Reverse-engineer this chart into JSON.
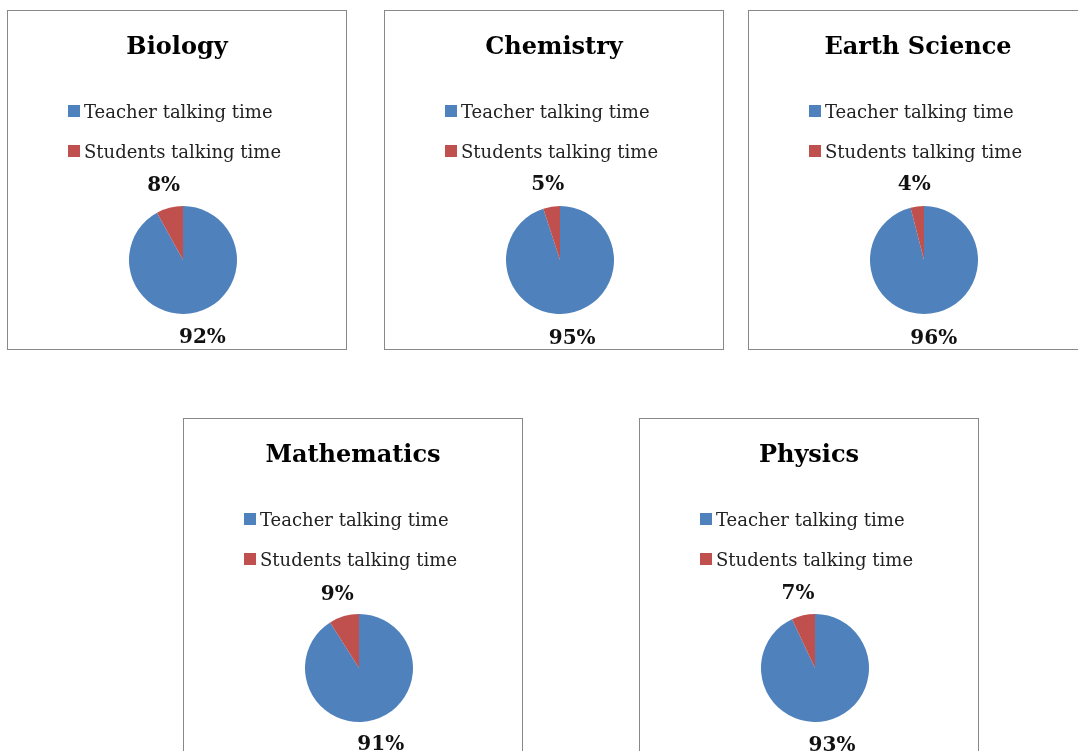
{
  "chart_data": [
    {
      "type": "pie",
      "title": "Biology",
      "categories": [
        "Teacher talking time",
        "Students talking time"
      ],
      "values": [
        92,
        8
      ],
      "value_labels": [
        "92%",
        "8%"
      ],
      "colors": [
        "#4f81bd",
        "#c0504d"
      ],
      "legend": "top"
    },
    {
      "type": "pie",
      "title": "Chemistry",
      "categories": [
        "Teacher talking time",
        "Students talking time"
      ],
      "values": [
        95,
        5
      ],
      "value_labels": [
        "95%",
        "5%"
      ],
      "colors": [
        "#4f81bd",
        "#c0504d"
      ],
      "legend": "top"
    },
    {
      "type": "pie",
      "title": "Earth Science",
      "categories": [
        "Teacher talking time",
        "Students talking time"
      ],
      "values": [
        96,
        4
      ],
      "value_labels": [
        "96%",
        "4%"
      ],
      "colors": [
        "#4f81bd",
        "#c0504d"
      ],
      "legend": "top"
    },
    {
      "type": "pie",
      "title": "Mathematics",
      "categories": [
        "Teacher talking time",
        "Students talking time"
      ],
      "values": [
        91,
        9
      ],
      "value_labels": [
        "91%",
        "9%"
      ],
      "colors": [
        "#4f81bd",
        "#c0504d"
      ],
      "legend": "top"
    },
    {
      "type": "pie",
      "title": "Physics",
      "categories": [
        "Teacher talking time",
        "Students talking time"
      ],
      "values": [
        93,
        7
      ],
      "value_labels": [
        "93%",
        "7%"
      ],
      "colors": [
        "#4f81bd",
        "#c0504d"
      ],
      "legend": "top"
    }
  ]
}
